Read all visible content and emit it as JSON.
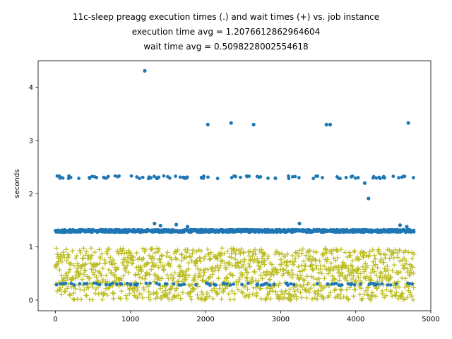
{
  "chart_data": {
    "type": "scatter",
    "title": [
      "11c-sleep preagg execution times (.) and wait times (+) vs. job instance",
      "execution time avg = 1.2076612862964604",
      "wait time avg = 0.5098228002554618"
    ],
    "xlabel": "",
    "ylabel": "seconds",
    "xlim": [
      -230,
      5000
    ],
    "ylim": [
      -0.2,
      4.5
    ],
    "xticks": [
      0,
      1000,
      2000,
      3000,
      4000,
      5000
    ],
    "yticks": [
      0,
      1,
      2,
      3,
      4
    ],
    "grid": false,
    "x_count": 4780,
    "series": [
      {
        "marker": ".",
        "color": "#1f77b4",
        "notable_points": [
          [
            1190,
            4.31
          ],
          [
            2030,
            3.3
          ],
          [
            2340,
            3.33
          ],
          [
            2640,
            3.3
          ],
          [
            3610,
            3.3
          ],
          [
            3660,
            3.3
          ],
          [
            4700,
            3.33
          ],
          [
            4120,
            2.2
          ],
          [
            4170,
            1.91
          ],
          [
            1320,
            1.44
          ],
          [
            1400,
            1.4
          ],
          [
            1610,
            1.42
          ],
          [
            1760,
            1.38
          ],
          [
            3250,
            1.44
          ],
          [
            4590,
            1.41
          ],
          [
            4680,
            1.38
          ]
        ],
        "bands": [
          {
            "center": 1.3,
            "spread": 0.025,
            "frac": 0.8
          },
          {
            "center": 2.31,
            "spread": 0.025,
            "frac": 0.07
          },
          {
            "center": 0.3,
            "spread": 0.02,
            "frac": 0.08
          }
        ]
      },
      {
        "marker": "+",
        "color": "#bcbd22",
        "range": [
          0.0,
          0.98
        ],
        "x_start": 0,
        "x_end": 4780
      }
    ]
  }
}
